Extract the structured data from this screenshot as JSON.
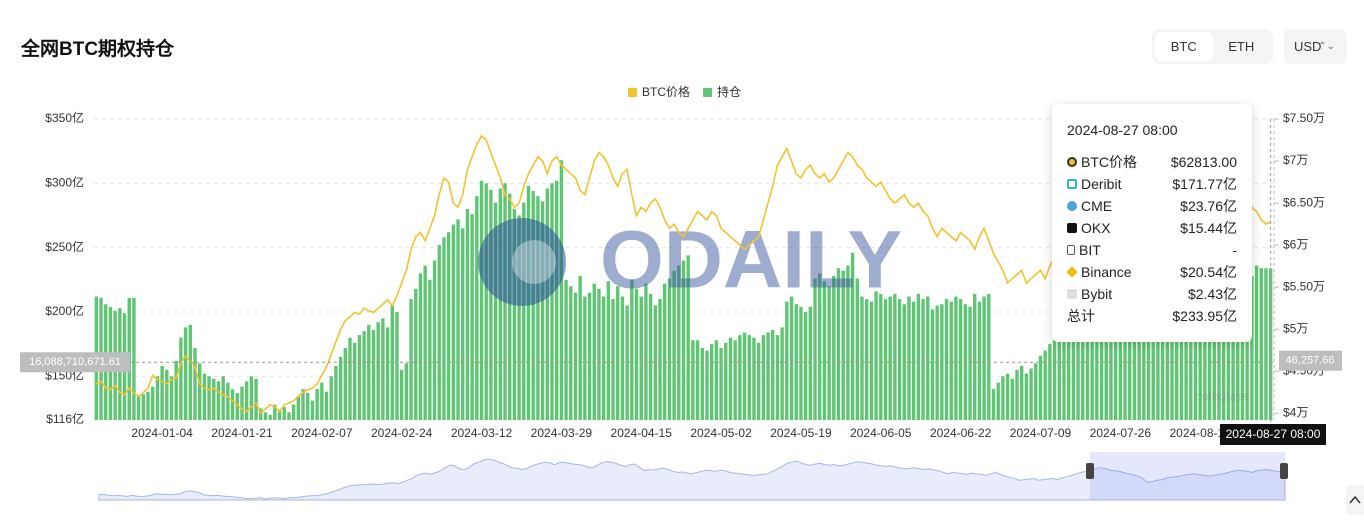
{
  "chart_data": {
    "type": "bar",
    "title": "全网BTC期权持仓",
    "categories": [
      null,
      null,
      null,
      null,
      null,
      null,
      null,
      null,
      null,
      null,
      null,
      null,
      null,
      null,
      "2024-01-04",
      null,
      null,
      null,
      null,
      null,
      null,
      null,
      null,
      null,
      null,
      null,
      null,
      null,
      null,
      null,
      null,
      "2024-01-21",
      null,
      null,
      null,
      null,
      null,
      null,
      null,
      null,
      null,
      null,
      null,
      null,
      null,
      null,
      null,
      null,
      "2024-02-07",
      null,
      null,
      null,
      null,
      null,
      null,
      null,
      null,
      null,
      null,
      null,
      null,
      null,
      null,
      null,
      null,
      "2024-02-24",
      null,
      null,
      null,
      null,
      null,
      null,
      null,
      null,
      null,
      null,
      null,
      null,
      null,
      null,
      null,
      null,
      "2024-03-12",
      null,
      null,
      null,
      null,
      null,
      null,
      null,
      null,
      null,
      null,
      null,
      null,
      null,
      null,
      null,
      null,
      "2024-03-29",
      null,
      null,
      null,
      null,
      null,
      null,
      null,
      null,
      null,
      null,
      null,
      null,
      null,
      null,
      null,
      null,
      "2024-04-15",
      null,
      null,
      null,
      null,
      null,
      null,
      null,
      null,
      null,
      null,
      null,
      null,
      null,
      null,
      null,
      null,
      "2024-05-02",
      null,
      null,
      null,
      null,
      null,
      null,
      null,
      null,
      null,
      null,
      null,
      null,
      null,
      null,
      null,
      null,
      "2024-05-19",
      null,
      null,
      null,
      null,
      null,
      null,
      null,
      null,
      null,
      null,
      null,
      null,
      null,
      null,
      null,
      null,
      "2024-06-05",
      null,
      null,
      null,
      null,
      null,
      null,
      null,
      null,
      null,
      null,
      null,
      null,
      null,
      null,
      null,
      null,
      "2024-06-22",
      null,
      null,
      null,
      null,
      null,
      null,
      null,
      null,
      null,
      null,
      null,
      null,
      null,
      null,
      null,
      null,
      "2024-07-09",
      null,
      null,
      null,
      null,
      null,
      null,
      null,
      null,
      null,
      null,
      null,
      null,
      null,
      null,
      null,
      null,
      "2024-07-26",
      null,
      null,
      null,
      null,
      null,
      null,
      null,
      null,
      null,
      null,
      null,
      null,
      null,
      null,
      null,
      null,
      "2024-08-12",
      null,
      null,
      null,
      null,
      null,
      null,
      null,
      null,
      null,
      null,
      null,
      null,
      null,
      null,
      null
    ],
    "series": [
      {
        "name": "BTC价格",
        "color": "#f2c230",
        "type": "line",
        "axis": "y2",
        "values": [
          4.35,
          4.38,
          4.3,
          4.28,
          4.33,
          4.25,
          4.22,
          4.3,
          4.24,
          4.2,
          4.25,
          4.3,
          4.45,
          4.4,
          4.38,
          4.35,
          4.4,
          4.42,
          4.6,
          4.68,
          4.62,
          4.55,
          4.35,
          4.3,
          4.28,
          4.3,
          4.25,
          4.22,
          4.2,
          4.15,
          4.1,
          4.05,
          4.02,
          4.08,
          4.12,
          4.0,
          4.05,
          4.1,
          4.08,
          4.02,
          4.1,
          4.12,
          4.15,
          4.2,
          4.25,
          4.28,
          4.3,
          4.35,
          4.45,
          4.55,
          4.7,
          4.85,
          5.0,
          5.1,
          5.15,
          5.2,
          5.18,
          5.25,
          5.22,
          5.2,
          5.25,
          5.3,
          5.35,
          5.28,
          5.4,
          5.55,
          5.7,
          5.95,
          6.1,
          6.15,
          6.05,
          6.2,
          6.35,
          6.6,
          6.8,
          6.75,
          6.5,
          6.45,
          6.6,
          6.9,
          7.05,
          7.2,
          7.3,
          7.25,
          7.1,
          6.95,
          6.8,
          6.6,
          6.55,
          6.45,
          6.5,
          6.7,
          6.85,
          6.95,
          7.05,
          7.0,
          6.85,
          7.0,
          7.05,
          6.95,
          6.9,
          6.85,
          6.8,
          6.65,
          6.6,
          6.8,
          7.0,
          7.1,
          7.05,
          6.95,
          6.8,
          6.7,
          6.85,
          6.9,
          6.6,
          6.35,
          6.45,
          6.4,
          6.5,
          6.55,
          6.45,
          6.3,
          6.2,
          6.25,
          6.15,
          6.1,
          6.2,
          6.3,
          6.4,
          6.35,
          6.3,
          6.4,
          6.35,
          6.2,
          6.15,
          6.1,
          6.05,
          6.0,
          5.95,
          6.0,
          6.05,
          6.1,
          6.3,
          6.5,
          6.7,
          6.95,
          7.05,
          7.15,
          7.0,
          6.85,
          6.8,
          6.9,
          6.95,
          6.85,
          6.8,
          6.85,
          6.75,
          6.8,
          6.9,
          7.0,
          7.1,
          7.05,
          6.95,
          6.9,
          6.8,
          6.75,
          6.7,
          6.75,
          6.65,
          6.55,
          6.5,
          6.55,
          6.6,
          6.5,
          6.45,
          6.5,
          6.4,
          6.35,
          6.2,
          6.1,
          6.2,
          6.15,
          6.1,
          6.05,
          6.15,
          6.1,
          6.05,
          5.95,
          6.1,
          6.2,
          6.05,
          5.9,
          5.8,
          5.7,
          5.55,
          5.6,
          5.65,
          5.7,
          5.55,
          5.6,
          5.65,
          5.7,
          5.6,
          5.75,
          5.85,
          5.95,
          6.1,
          6.2,
          6.3,
          6.4,
          6.5,
          6.6,
          6.55,
          6.4,
          6.35,
          6.3,
          6.2,
          6.1,
          6.0,
          5.9,
          5.7,
          5.4,
          5.45,
          5.55,
          5.6,
          5.75,
          5.8,
          5.85,
          5.9,
          6.0,
          6.05,
          6.1,
          6.0,
          5.95,
          5.9,
          5.95,
          6.05,
          6.1,
          6.2,
          6.3,
          6.4,
          6.35,
          6.3,
          6.2,
          6.35,
          6.4,
          6.45,
          6.4,
          6.3,
          6.25,
          6.28
        ]
      },
      {
        "name": "持仓",
        "color": "#5ec672",
        "type": "bar",
        "values": [
          212,
          211,
          206,
          204,
          201,
          203,
          199,
          211,
          211,
          135,
          136,
          138,
          142,
          150,
          158,
          155,
          150,
          162,
          180,
          188,
          190,
          172,
          160,
          152,
          150,
          148,
          146,
          150,
          145,
          140,
          137,
          142,
          146,
          150,
          148,
          125,
          122,
          120,
          128,
          124,
          126,
          122,
          128,
          134,
          140,
          137,
          131,
          140,
          145,
          138,
          150,
          158,
          165,
          172,
          180,
          176,
          182,
          185,
          190,
          186,
          192,
          195,
          188,
          205,
          200,
          155,
          160,
          210,
          218,
          230,
          236,
          225,
          240,
          252,
          258,
          262,
          268,
          272,
          265,
          280,
          276,
          290,
          302,
          300,
          295,
          285,
          296,
          300,
          292,
          280,
          275,
          285,
          298,
          294,
          290,
          286,
          296,
          300,
          302,
          318,
          225,
          220,
          215,
          228,
          212,
          215,
          222,
          218,
          212,
          224,
          210,
          220,
          212,
          205,
          225,
          218,
          212,
          222,
          214,
          205,
          210,
          222,
          226,
          232,
          236,
          240,
          244,
          178,
          178,
          172,
          170,
          175,
          178,
          172,
          176,
          180,
          178,
          182,
          184,
          182,
          180,
          176,
          182,
          184,
          186,
          182,
          188,
          208,
          212,
          206,
          204,
          200,
          204,
          226,
          230,
          224,
          220,
          228,
          234,
          232,
          236,
          246,
          226,
          212,
          210,
          208,
          216,
          214,
          210,
          212,
          214,
          210,
          206,
          212,
          208,
          214,
          210,
          212,
          202,
          205,
          206,
          210,
          208,
          212,
          210,
          206,
          204,
          214,
          208,
          212,
          214,
          140,
          145,
          150,
          152,
          148,
          155,
          158,
          152,
          156,
          160,
          166,
          170,
          175,
          182,
          185,
          190,
          195,
          192,
          198,
          200,
          205,
          210,
          208,
          212,
          218,
          215,
          220,
          216,
          214,
          218,
          222,
          216,
          212,
          218,
          220,
          215,
          210,
          214,
          218,
          220,
          222,
          226,
          230,
          228,
          224,
          226,
          232,
          228,
          230,
          232,
          228,
          224,
          230,
          234,
          232,
          228,
          236,
          234,
          234,
          233.95
        ]
      }
    ],
    "ylim": [
      116,
      350
    ],
    "yticks": [
      {
        "value": 116,
        "label": "$116亿"
      },
      {
        "value": 150,
        "label": "$150亿"
      },
      {
        "value": 200,
        "label": "$200亿"
      },
      {
        "value": 250,
        "label": "$250亿"
      },
      {
        "value": 300,
        "label": "$300亿"
      },
      {
        "value": 350,
        "label": "$350亿"
      }
    ],
    "y2lim": [
      3.92,
      7.5
    ],
    "y2ticks": [
      {
        "value": 4,
        "label": "$4万"
      },
      {
        "value": 4.5,
        "label": "$4.50万"
      },
      {
        "value": 5,
        "label": "$5万"
      },
      {
        "value": 5.5,
        "label": "$5.50万"
      },
      {
        "value": 6,
        "label": "$6万"
      },
      {
        "value": 6.5,
        "label": "$6.50万"
      },
      {
        "value": 7,
        "label": "$7万"
      },
      {
        "value": 7.5,
        "label": "$7.50万"
      }
    ],
    "grid": true,
    "crosshair": {
      "y": {
        "value": 160.8871067161,
        "label": "16,088,710,671.61"
      },
      "y2": {
        "value": 4.625766,
        "label": "46,257.66"
      },
      "x_label": "2024-08-27 08:00"
    },
    "watermarks": [
      "ODAILY",
      "coinglass"
    ]
  },
  "controls": {
    "coin_tabs": [
      "BTC",
      "ETH"
    ],
    "currency": "USD"
  },
  "tooltip": {
    "title": "2024-08-27 08:00",
    "rows": [
      [
        "BTC价格",
        "$62813.00"
      ],
      [
        "Deribit",
        "$171.77亿"
      ],
      [
        "CME",
        "$23.76亿"
      ],
      [
        "OKX",
        "$15.44亿"
      ],
      [
        "BIT",
        "-"
      ],
      [
        "Binance",
        "$20.54亿"
      ],
      [
        "Bybit",
        "$2.43亿"
      ],
      [
        "总计",
        "$233.95亿"
      ]
    ]
  }
}
